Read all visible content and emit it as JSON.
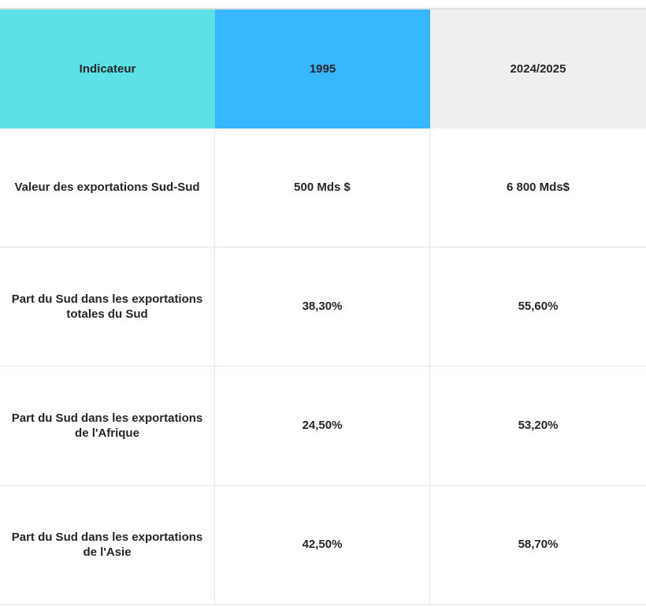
{
  "table": {
    "columns": [
      {
        "label": "Indicateur",
        "bg": "#5ce1e6"
      },
      {
        "label": "1995",
        "bg": "#38b6ff"
      },
      {
        "label": "2024/2025",
        "bg": "#efefef"
      }
    ],
    "rows": [
      {
        "indicator": "Valeur des exportations Sud-Sud",
        "y1995": "500 Mds $",
        "y2024": "6 800 Mds$"
      },
      {
        "indicator": "Part du Sud dans les exportations totales du Sud",
        "y1995": "38,30%",
        "y2024": "55,60%"
      },
      {
        "indicator": "Part du Sud dans les exportations de l'Afrique",
        "y1995": "24,50%",
        "y2024": "53,20%"
      },
      {
        "indicator": "Part du Sud dans les exportations de l'Asie",
        "y1995": "42,50%",
        "y2024": "58,70%"
      }
    ]
  },
  "colors": {
    "header_indicateur_bg": "#5ce1e6",
    "header_1995_bg": "#38b6ff",
    "header_2024_bg": "#efefef",
    "text": "#262626",
    "border": "#e7e7e7"
  }
}
